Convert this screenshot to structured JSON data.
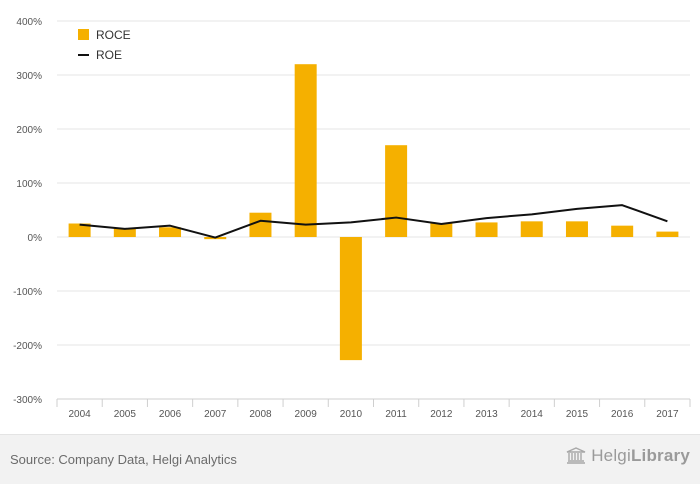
{
  "chart_data": {
    "type": "bar",
    "categories": [
      "2004",
      "2005",
      "2006",
      "2007",
      "2008",
      "2009",
      "2010",
      "2011",
      "2012",
      "2013",
      "2014",
      "2015",
      "2016",
      "2017"
    ],
    "series": [
      {
        "name": "ROCE",
        "kind": "bar",
        "color": "#f5b000",
        "values": [
          25,
          16,
          18,
          -4,
          45,
          320,
          -228,
          170,
          25,
          27,
          29,
          29,
          21,
          10
        ]
      },
      {
        "name": "ROE",
        "kind": "line",
        "color": "#111111",
        "values": [
          23,
          15,
          21,
          -1,
          30,
          23,
          27,
          36,
          24,
          35,
          42,
          52,
          59,
          29
        ]
      }
    ],
    "ylim": [
      -300,
      400
    ],
    "yticks": [
      -300,
      -200,
      -100,
      0,
      100,
      200,
      300,
      400
    ],
    "ytick_labels": [
      "-300%",
      "-200%",
      "-100%",
      "0%",
      "100%",
      "200%",
      "300%",
      "400%"
    ],
    "ylabel": "",
    "xlabel": "",
    "grid": true,
    "legend_position": "top-left"
  },
  "footer": {
    "source": "Source: Company Data, Helgi Analytics",
    "brand_regular": "Helgi",
    "brand_bold": "Library"
  }
}
